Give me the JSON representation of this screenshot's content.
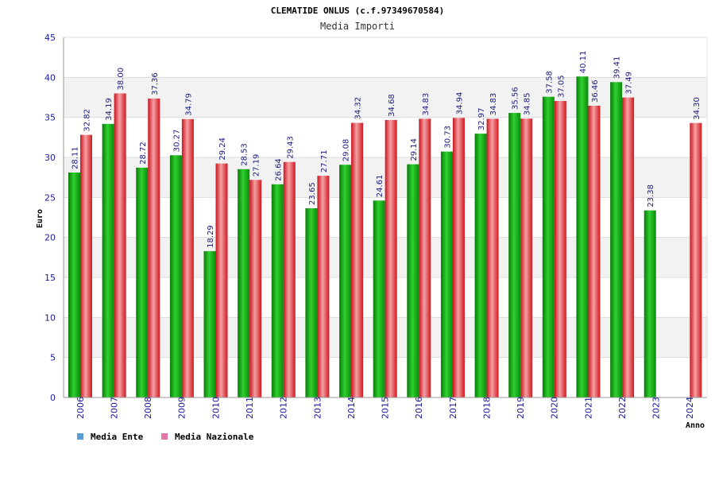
{
  "chart_data": {
    "type": "bar",
    "title": "CLEMATIDE ONLUS (c.f.97349670584)",
    "subtitle": "Media Importi",
    "xlabel": "Anno",
    "ylabel": "Euro",
    "ylim": [
      0,
      45
    ],
    "yticks": [
      "0",
      "5",
      "10",
      "15",
      "20",
      "25",
      "30",
      "35",
      "40",
      "45"
    ],
    "grid": true,
    "legend_position": "bottom-left",
    "categories": [
      "2006",
      "2007",
      "2008",
      "2009",
      "2010",
      "2011",
      "2012",
      "2013",
      "2014",
      "2015",
      "2016",
      "2017",
      "2018",
      "2019",
      "2020",
      "2021",
      "2022",
      "2023",
      "2024"
    ],
    "series": [
      {
        "name": "Media Ente",
        "legend_color": "#5b9bd5",
        "color": "#13a813",
        "values": [
          28.11,
          34.19,
          28.72,
          30.27,
          18.29,
          28.53,
          26.64,
          23.65,
          29.08,
          24.61,
          29.14,
          30.73,
          32.97,
          35.56,
          37.58,
          40.11,
          39.41,
          23.38,
          null
        ],
        "labels": [
          "28.11",
          "34.19",
          "28.72",
          "30.27",
          "18.29",
          "28.53",
          "26.64",
          "23.65",
          "29.08",
          "24.61",
          "29.14",
          "30.73",
          "32.97",
          "35.56",
          "37.58",
          "40.11",
          "39.41",
          "23.38",
          ""
        ]
      },
      {
        "name": "Media Nazionale",
        "legend_color": "#e377a6",
        "color": "#e02a30",
        "values": [
          32.82,
          38.0,
          37.36,
          34.79,
          29.24,
          27.19,
          29.43,
          27.71,
          34.32,
          34.68,
          34.83,
          34.94,
          34.83,
          34.85,
          37.05,
          36.46,
          37.49,
          null,
          34.3
        ],
        "labels": [
          "32.82",
          "38.00",
          "37.36",
          "34.79",
          "29.24",
          "27.19",
          "29.43",
          "27.71",
          "34.32",
          "34.68",
          "34.83",
          "34.94",
          "34.83",
          "34.85",
          "37.05",
          "36.46",
          "37.49",
          "",
          "34.30"
        ]
      }
    ]
  }
}
